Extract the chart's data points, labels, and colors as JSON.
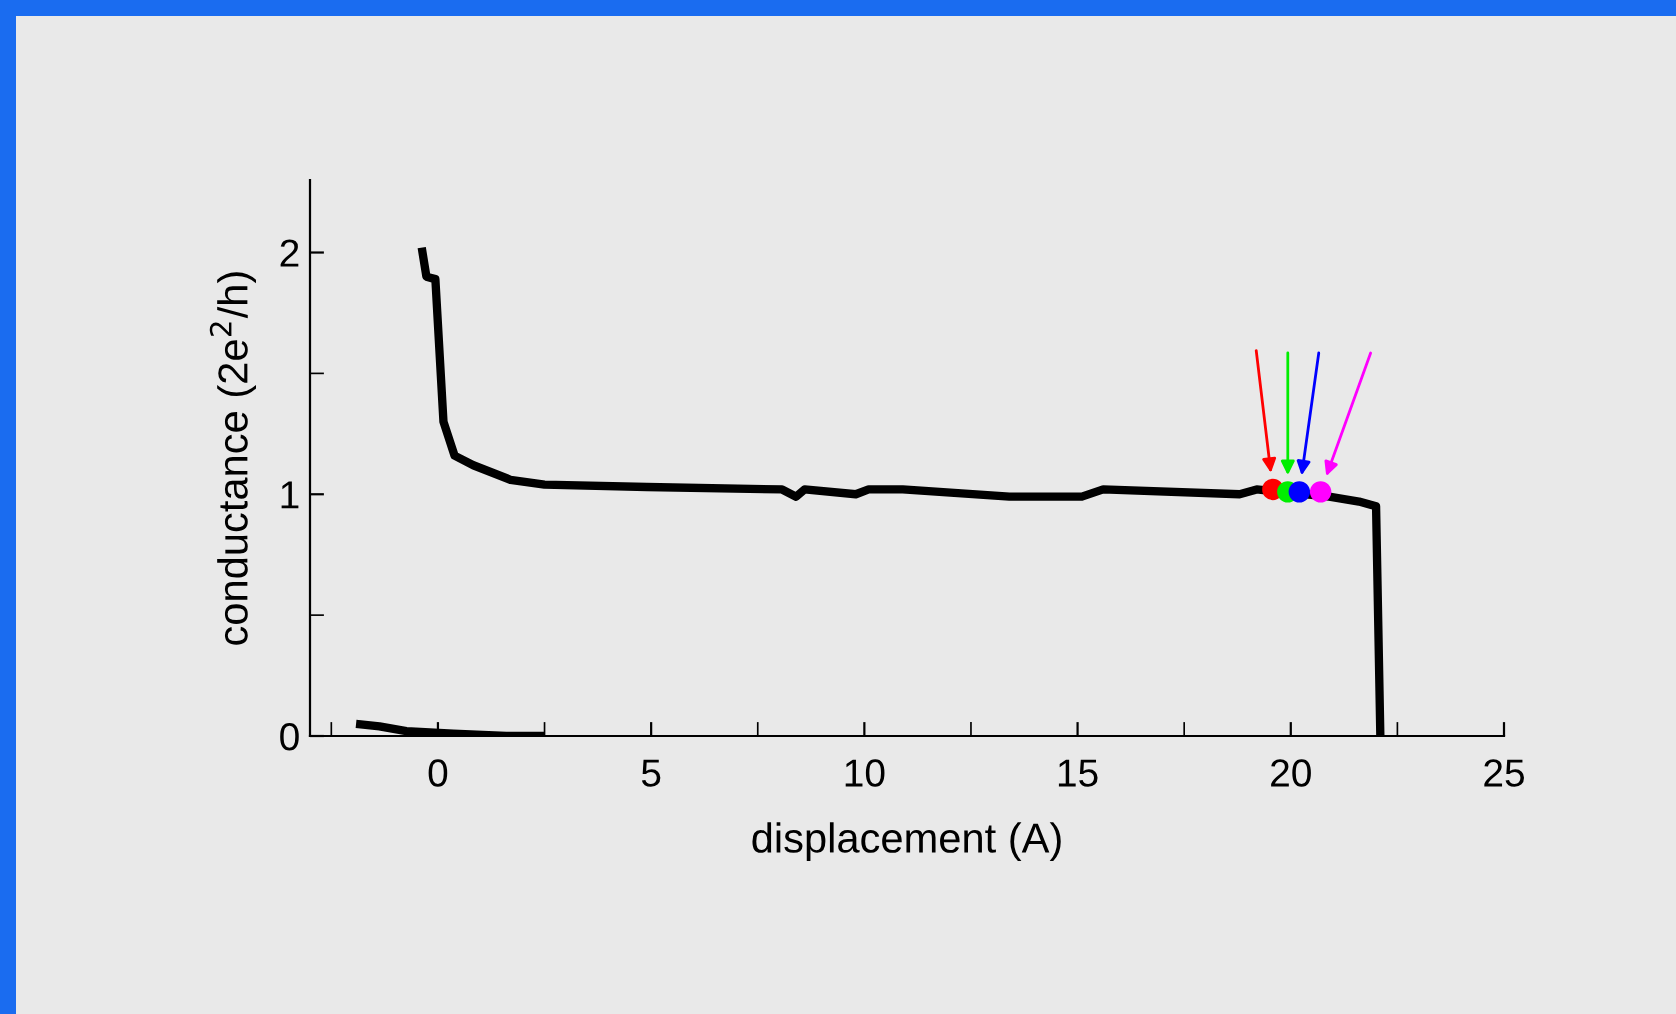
{
  "chart_data": {
    "type": "line",
    "xlabel": "displacement (A)",
    "ylabel": "conductance (2e$^{2}$/h)",
    "xlim": [
      -3,
      25
    ],
    "ylim": [
      0,
      2.3
    ],
    "xticks": [
      0,
      5,
      10,
      15,
      20,
      25
    ],
    "yticks": [
      0,
      1,
      2
    ],
    "grid": false,
    "legend": false,
    "line_style": "solid",
    "series": [
      {
        "color": "#000000",
        "marker": "none",
        "x": [
          -0.38,
          -0.27,
          -0.06,
          0.13,
          0.39,
          0.83,
          1.7,
          2.5,
          4.9,
          8.07,
          8.4,
          8.6,
          9.8,
          10.1,
          10.4,
          10.9,
          13.4,
          15.1,
          15.6,
          18.8,
          19.2,
          20.9,
          21.6,
          22.0,
          22.1
        ],
        "values": [
          2.02,
          1.9,
          1.89,
          1.3,
          1.16,
          1.12,
          1.06,
          1.04,
          1.03,
          1.02,
          0.99,
          1.02,
          1.0,
          1.02,
          1.02,
          1.02,
          0.99,
          0.99,
          1.02,
          1.0,
          1.02,
          0.99,
          0.97,
          0.95,
          0
        ]
      },
      {
        "color": "#000000",
        "marker": "none",
        "x": [
          -1.92,
          -1.37,
          -0.74,
          0.36,
          1.6,
          2.5
        ],
        "values": [
          0.05,
          0.04,
          0.02,
          0.01,
          0,
          0
        ]
      },
      {
        "type": "scatter",
        "marker": "circle",
        "x": [
          19.58,
          19.93,
          20.2,
          20.7
        ],
        "values": [
          1.02,
          1.01,
          1.01,
          1.01
        ],
        "colors": [
          "#ff0000",
          "#00ee00",
          "#0000ff",
          "#ff00ff"
        ]
      }
    ]
  }
}
